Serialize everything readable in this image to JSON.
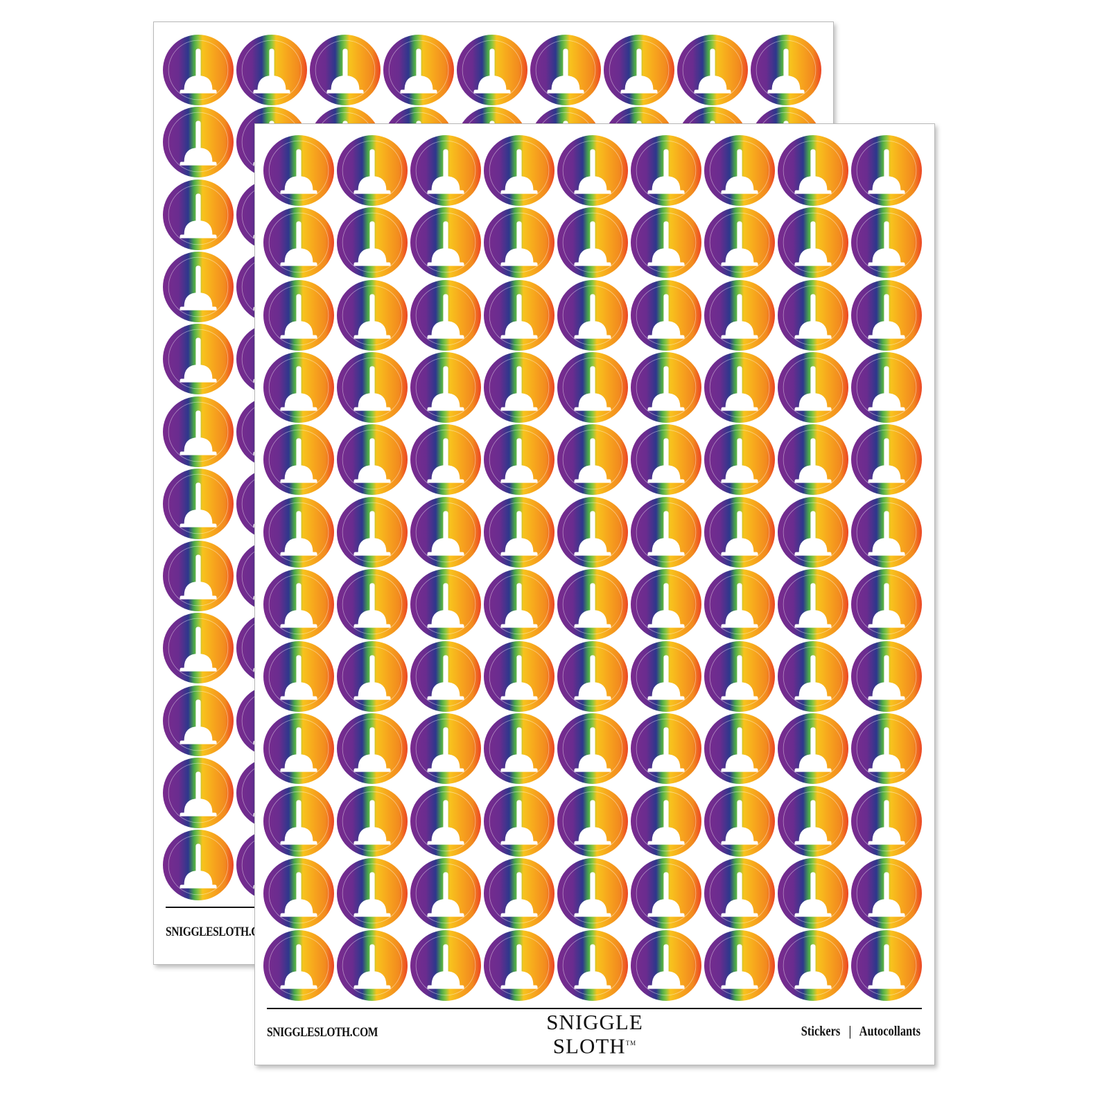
{
  "product": {
    "website": "SNIGGLESLOTH.COM",
    "website_clipped": "SNIGGLESLOTH.C",
    "brand_line1": "SNIGGLE",
    "brand_line2": "SLOTH",
    "trademark": "TM",
    "tagline_en": "Stickers",
    "separator": "|",
    "tagline_fr": "Autocollants"
  },
  "sheet": {
    "columns": 9,
    "rows": 12,
    "sheet_count": 2
  },
  "sticker": {
    "icon": "plunger-icon",
    "gradient_colors": [
      "#7a2b8e",
      "#6a2c8f",
      "#2d388c",
      "#4aa84a",
      "#8cc63f",
      "#f7c31d",
      "#f7a51d",
      "#f28a1f",
      "#ec4524"
    ]
  }
}
